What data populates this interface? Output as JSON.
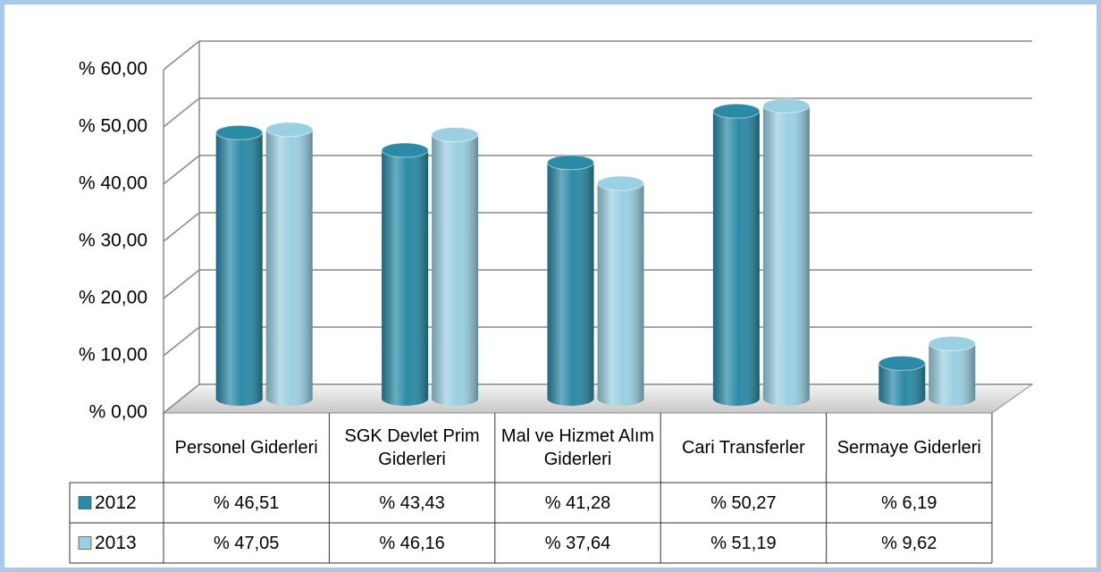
{
  "chart_data": {
    "type": "bar",
    "categories": [
      "Personel Giderleri",
      "SGK Devlet Prim Giderleri",
      "Mal ve Hizmet Alım Giderleri",
      "Cari Transferler",
      "Sermaye Giderleri"
    ],
    "series": [
      {
        "name": "2012",
        "color": "#2b8aa6",
        "values": [
          46.51,
          43.43,
          41.28,
          50.27,
          6.19
        ],
        "value_labels": [
          "% 46,51",
          "% 43,43",
          "% 41,28",
          "% 50,27",
          "% 6,19"
        ]
      },
      {
        "name": "2013",
        "color": "#9ad0e1",
        "values": [
          47.05,
          46.16,
          37.64,
          51.19,
          9.62
        ],
        "value_labels": [
          "% 47,05",
          "% 46,16",
          "% 37,64",
          "% 51,19",
          "% 9,62"
        ]
      }
    ],
    "ylim": [
      0,
      60
    ],
    "yticks": [
      {
        "value": 0,
        "label": "% 0,00"
      },
      {
        "value": 10,
        "label": "% 10,00"
      },
      {
        "value": 20,
        "label": "% 20,00"
      },
      {
        "value": 30,
        "label": "% 30,00"
      },
      {
        "value": 40,
        "label": "% 40,00"
      },
      {
        "value": 50,
        "label": "% 50,00"
      },
      {
        "value": 60,
        "label": "% 60,00"
      }
    ],
    "grid": true
  }
}
